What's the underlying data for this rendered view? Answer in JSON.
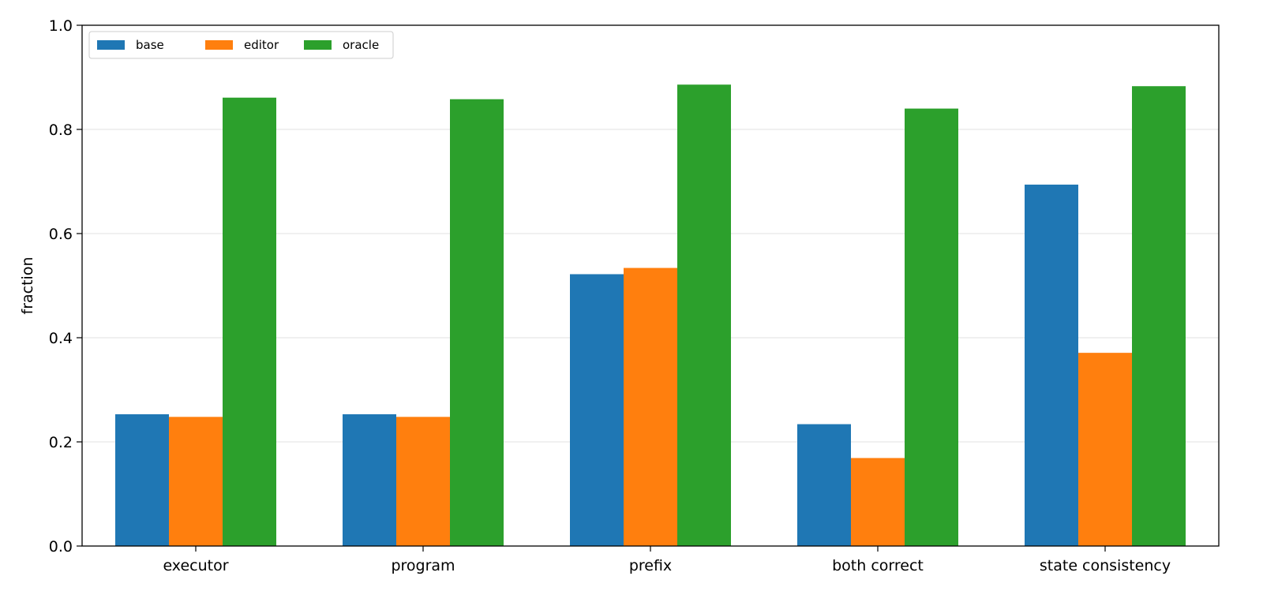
{
  "chart_data": {
    "type": "bar",
    "title": "",
    "xlabel": "",
    "ylabel": "fraction",
    "ylim": [
      0,
      1.0
    ],
    "yticks": [
      "0.0",
      "0.2",
      "0.4",
      "0.6",
      "0.8",
      "1.0"
    ],
    "grid": "horizontal",
    "legend_placement": "top-left",
    "categories": [
      "executor",
      "program",
      "prefix",
      "both correct",
      "state consistency"
    ],
    "series": [
      {
        "name": "base",
        "color": "#1f77b4",
        "values": [
          0.253,
          0.253,
          0.522,
          0.234,
          0.694
        ]
      },
      {
        "name": "editor",
        "color": "#ff7f0e",
        "values": [
          0.248,
          0.248,
          0.534,
          0.169,
          0.371
        ]
      },
      {
        "name": "oracle",
        "color": "#2ca02c",
        "values": [
          0.861,
          0.858,
          0.886,
          0.84,
          0.883
        ]
      }
    ]
  }
}
